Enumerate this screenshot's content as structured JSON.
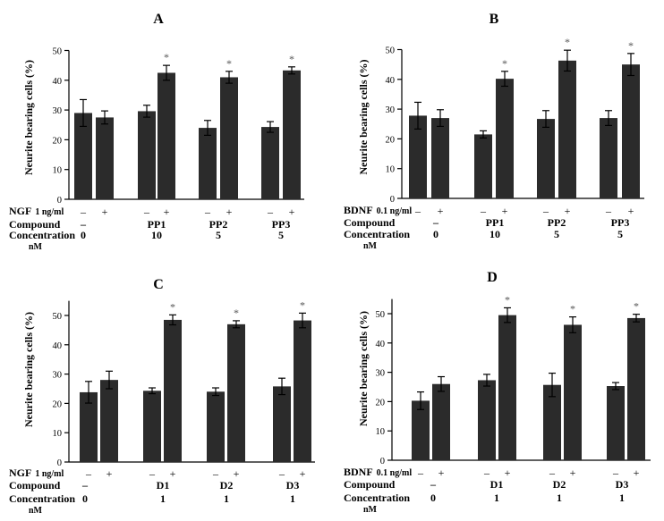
{
  "chart_data": [
    {
      "type": "bar",
      "title": "A",
      "ylabel": "Neurite bearing cells (%)",
      "ylim": [
        0,
        50
      ],
      "yticks": [
        0,
        10,
        20,
        30,
        40,
        50
      ],
      "factor": {
        "label": "NGF",
        "unit": "1 ng/ml"
      },
      "compound_label": "Compound",
      "concentration_label": "Concentration",
      "concentration_unit": "nM",
      "groups": [
        {
          "compound": "–",
          "concentration": "0",
          "bars": [
            {
              "sign": "–",
              "value": 29,
              "error": 4.5,
              "star": false
            },
            {
              "sign": "+",
              "value": 27.5,
              "error": 2.2,
              "star": false
            }
          ]
        },
        {
          "compound": "PP1",
          "concentration": "10",
          "bars": [
            {
              "sign": "–",
              "value": 29.6,
              "error": 2,
              "star": false
            },
            {
              "sign": "+",
              "value": 42.5,
              "error": 2.5,
              "star": true
            }
          ]
        },
        {
          "compound": "PP2",
          "concentration": "5",
          "bars": [
            {
              "sign": "–",
              "value": 24,
              "error": 2.5,
              "star": false
            },
            {
              "sign": "+",
              "value": 41,
              "error": 2,
              "star": true
            }
          ]
        },
        {
          "compound": "PP3",
          "concentration": "5",
          "bars": [
            {
              "sign": "–",
              "value": 24.3,
              "error": 1.8,
              "star": false
            },
            {
              "sign": "+",
              "value": 43.3,
              "error": 1.2,
              "star": true
            }
          ]
        }
      ]
    },
    {
      "type": "bar",
      "title": "B",
      "ylabel": "Neurite bearing cells (%)",
      "ylim": [
        0,
        50
      ],
      "yticks": [
        0,
        10,
        20,
        30,
        40,
        50
      ],
      "factor": {
        "label": "BDNF",
        "unit": "0.1 ng/ml"
      },
      "compound_label": "Compound",
      "concentration_label": "Concentration",
      "concentration_unit": "nM",
      "groups": [
        {
          "compound": "–",
          "concentration": "0",
          "bars": [
            {
              "sign": "–",
              "value": 27.8,
              "error": 4.5,
              "star": false
            },
            {
              "sign": "+",
              "value": 27,
              "error": 2.8,
              "star": false
            }
          ]
        },
        {
          "compound": "PP1",
          "concentration": "10",
          "bars": [
            {
              "sign": "–",
              "value": 21.5,
              "error": 1.2,
              "star": false
            },
            {
              "sign": "+",
              "value": 40.2,
              "error": 2.5,
              "star": true
            }
          ]
        },
        {
          "compound": "PP2",
          "concentration": "5",
          "bars": [
            {
              "sign": "–",
              "value": 26.7,
              "error": 2.8,
              "star": false
            },
            {
              "sign": "+",
              "value": 46.3,
              "error": 3.5,
              "star": true
            }
          ]
        },
        {
          "compound": "PP3",
          "concentration": "5",
          "bars": [
            {
              "sign": "–",
              "value": 27,
              "error": 2.5,
              "star": false
            },
            {
              "sign": "+",
              "value": 45,
              "error": 3.7,
              "star": true
            }
          ]
        }
      ]
    },
    {
      "type": "bar",
      "title": "C",
      "ylabel": "Neurite bearing cells (%)",
      "ylim": [
        0,
        55
      ],
      "yticks": [
        0,
        10,
        20,
        30,
        40,
        50
      ],
      "factor": {
        "label": "NGF",
        "unit": "1 ng/ml"
      },
      "compound_label": "Compound",
      "concentration_label": "Concentration",
      "concentration_unit": "nM",
      "groups": [
        {
          "compound": "–",
          "concentration": "0",
          "bars": [
            {
              "sign": "–",
              "value": 23.8,
              "error": 3.7,
              "star": false
            },
            {
              "sign": "+",
              "value": 28,
              "error": 3,
              "star": false
            }
          ]
        },
        {
          "compound": "D1",
          "concentration": "1",
          "bars": [
            {
              "sign": "–",
              "value": 24.3,
              "error": 1,
              "star": false
            },
            {
              "sign": "+",
              "value": 48.5,
              "error": 1.7,
              "star": true
            }
          ]
        },
        {
          "compound": "D2",
          "concentration": "1",
          "bars": [
            {
              "sign": "–",
              "value": 24,
              "error": 1.3,
              "star": false
            },
            {
              "sign": "+",
              "value": 47,
              "error": 1.2,
              "star": true
            }
          ]
        },
        {
          "compound": "D3",
          "concentration": "1",
          "bars": [
            {
              "sign": "–",
              "value": 25.8,
              "error": 2.8,
              "star": false
            },
            {
              "sign": "+",
              "value": 48.3,
              "error": 2.5,
              "star": true
            }
          ]
        }
      ]
    },
    {
      "type": "bar",
      "title": "D",
      "ylabel": "Neurite bearing cells (%)",
      "ylim": [
        0,
        55
      ],
      "yticks": [
        0,
        10,
        20,
        30,
        40,
        50
      ],
      "factor": {
        "label": "BDNF",
        "unit": "0.1 ng/ml"
      },
      "compound_label": "Compound",
      "concentration_label": "Concentration",
      "concentration_unit": "nM",
      "groups": [
        {
          "compound": "–",
          "concentration": "0",
          "bars": [
            {
              "sign": "–",
              "value": 20.3,
              "error": 3,
              "star": false
            },
            {
              "sign": "+",
              "value": 26,
              "error": 2.5,
              "star": false
            }
          ]
        },
        {
          "compound": "D1",
          "concentration": "1",
          "bars": [
            {
              "sign": "–",
              "value": 27.3,
              "error": 2,
              "star": false
            },
            {
              "sign": "+",
              "value": 49.5,
              "error": 2.5,
              "star": true
            }
          ]
        },
        {
          "compound": "D2",
          "concentration": "1",
          "bars": [
            {
              "sign": "–",
              "value": 25.7,
              "error": 4,
              "star": false
            },
            {
              "sign": "+",
              "value": 46.2,
              "error": 2.7,
              "star": true
            }
          ]
        },
        {
          "compound": "D3",
          "concentration": "1",
          "bars": [
            {
              "sign": "–",
              "value": 25.3,
              "error": 1.2,
              "star": false
            },
            {
              "sign": "+",
              "value": 48.5,
              "error": 1.3,
              "star": true
            }
          ]
        }
      ]
    }
  ],
  "colors": {
    "bar": "#2b2b2b",
    "axis": "#000000",
    "star": "#555555"
  },
  "star_symbol": "*"
}
